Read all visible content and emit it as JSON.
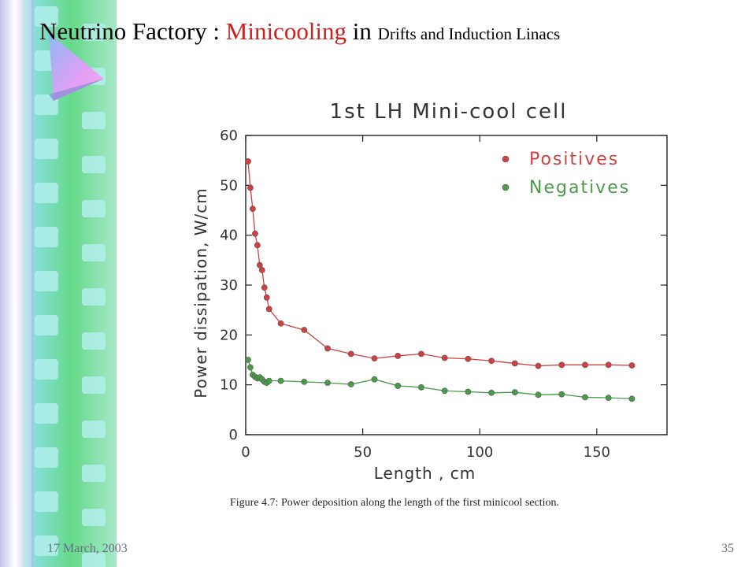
{
  "slide": {
    "title_part1": "Neutrino Factory : ",
    "title_part2": "Minicooling",
    "title_part3": " in ",
    "title_part4": "Drifts and Induction Linacs",
    "date": "17 March, 2003",
    "page_number": "35",
    "colors": {
      "accent_red": "#d01f1f",
      "footer": "#6b6b88"
    }
  },
  "chart_data": {
    "type": "line",
    "title": "1st LH Mini-cool cell",
    "xlabel": "Length , cm",
    "ylabel": "Power dissipation, W/cm",
    "xlim": [
      0,
      180
    ],
    "ylim": [
      0,
      60
    ],
    "xticks": [
      0,
      50,
      100,
      150
    ],
    "yticks": [
      0,
      10,
      20,
      30,
      40,
      50,
      60
    ],
    "legend_position": "top-right",
    "caption": "Figure 4.7: Power deposition along the length of the first minicool section.",
    "series": [
      {
        "name": "Positives",
        "color": "#d04040",
        "x": [
          1,
          2,
          3,
          4,
          5,
          6,
          7,
          8,
          9,
          10,
          15,
          25,
          35,
          45,
          55,
          65,
          75,
          85,
          95,
          105,
          115,
          125,
          135,
          145,
          155,
          165
        ],
        "y": [
          54.8,
          49.5,
          45.3,
          40.3,
          38,
          34,
          33,
          29.5,
          27.5,
          25.2,
          22.3,
          21,
          17.3,
          16.2,
          15.3,
          15.8,
          16.2,
          15.4,
          15.2,
          14.8,
          14.3,
          13.8,
          14,
          14,
          14,
          13.9
        ]
      },
      {
        "name": "Negatives",
        "color": "#4a9a4a",
        "x": [
          1,
          2,
          3,
          4,
          5,
          6,
          7,
          8,
          9,
          10,
          15,
          25,
          35,
          45,
          55,
          65,
          75,
          85,
          95,
          105,
          115,
          125,
          135,
          145,
          155,
          165
        ],
        "y": [
          15,
          13.5,
          12,
          11.6,
          11.3,
          11.5,
          11.1,
          10.6,
          10.4,
          10.8,
          10.8,
          10.6,
          10.4,
          10.1,
          11.1,
          9.8,
          9.5,
          8.8,
          8.6,
          8.4,
          8.5,
          8,
          8.1,
          7.5,
          7.4,
          7.2
        ]
      }
    ]
  }
}
